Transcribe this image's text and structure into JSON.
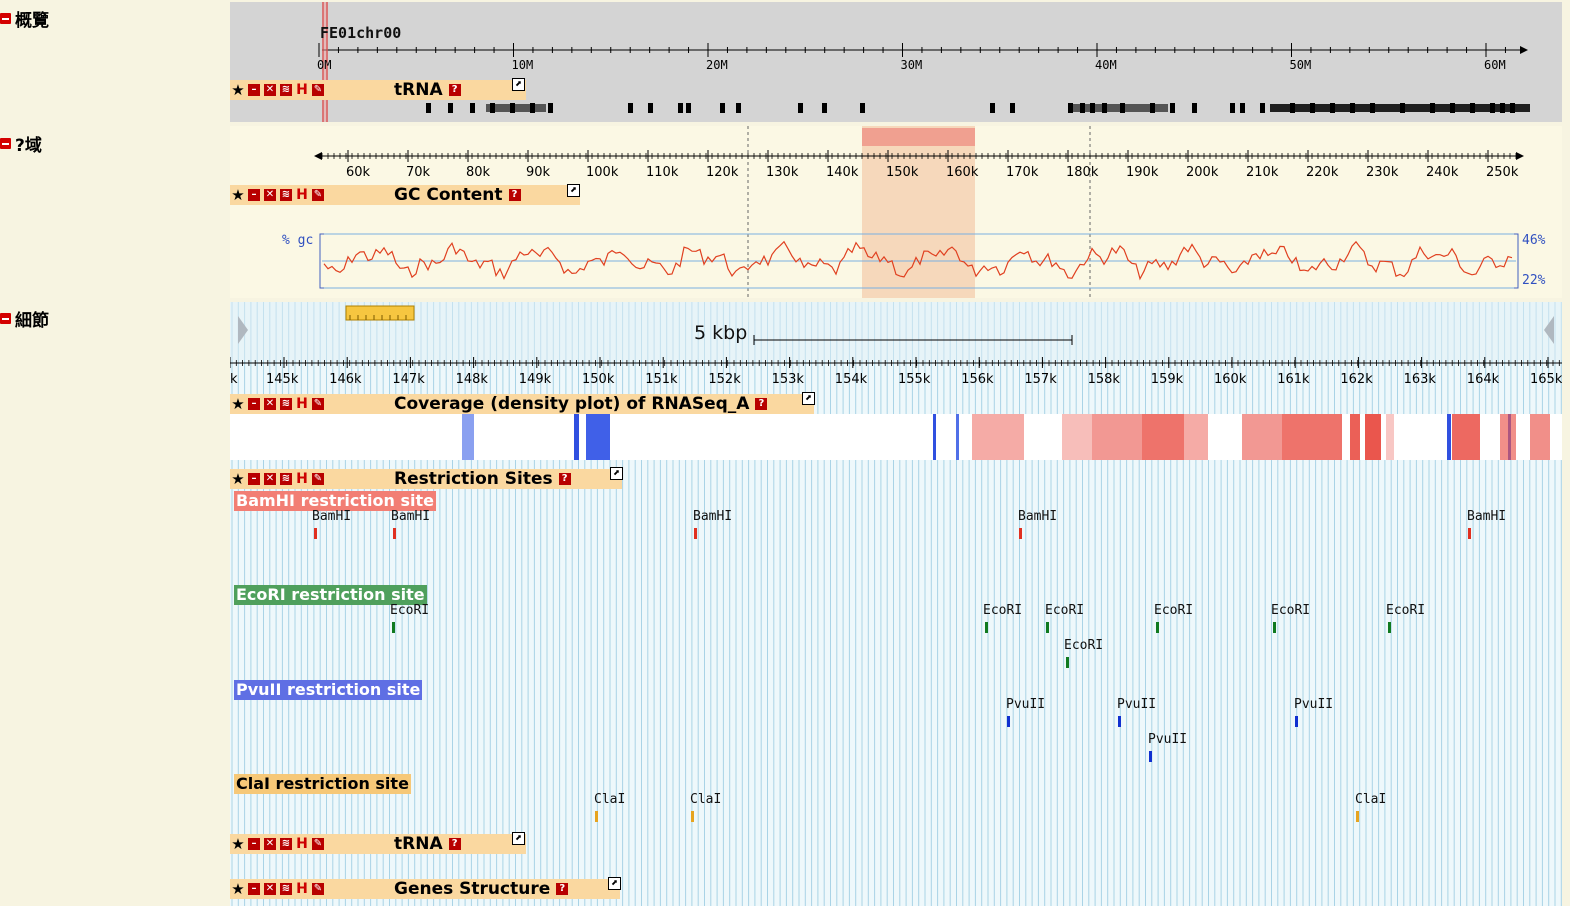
{
  "sections": {
    "overview": "概覽",
    "region": "?域",
    "details": "細節"
  },
  "overview": {
    "chromosome": "FE01chr00",
    "ticks": [
      "0M",
      "10M",
      "20M",
      "30M",
      "40M",
      "50M",
      "60M"
    ],
    "track_title": "tRNA"
  },
  "region": {
    "ticks": [
      "60k",
      "70k",
      "80k",
      "90k",
      "100k",
      "110k",
      "120k",
      "130k",
      "140k",
      "150k",
      "160k",
      "170k",
      "180k",
      "190k",
      "200k",
      "210k",
      "220k",
      "230k",
      "240k",
      "250k"
    ],
    "track_title": "GC Content",
    "gc_label": "% gc",
    "gc_max": "46%",
    "gc_min": "22%"
  },
  "details": {
    "scale_label": "5 kbp",
    "ticks": [
      "k",
      "145k",
      "146k",
      "147k",
      "148k",
      "149k",
      "150k",
      "151k",
      "152k",
      "153k",
      "154k",
      "155k",
      "156k",
      "157k",
      "158k",
      "159k",
      "160k",
      "161k",
      "162k",
      "163k",
      "164k",
      "165k"
    ],
    "tracks": {
      "coverage": "Coverage (density plot) of RNASeq_A",
      "restriction": "Restriction Sites",
      "trna": "tRNA",
      "genes": "Genes Structure"
    },
    "sublabels": {
      "bamhi": "BamHI restriction site",
      "ecori": "EcoRI restriction site",
      "pvuii": "PvuII restriction site",
      "clai": "ClaI restriction site"
    },
    "enzymes": {
      "bamhi": "BamHI",
      "ecori": "EcoRI",
      "pvuii": "PvuII",
      "clai": "ClaI"
    }
  },
  "colors": {
    "bamhi": "#e8584c",
    "ecori": "#4ea05a",
    "pvuii": "#5a6ae0",
    "clai": "#f4c46c"
  }
}
